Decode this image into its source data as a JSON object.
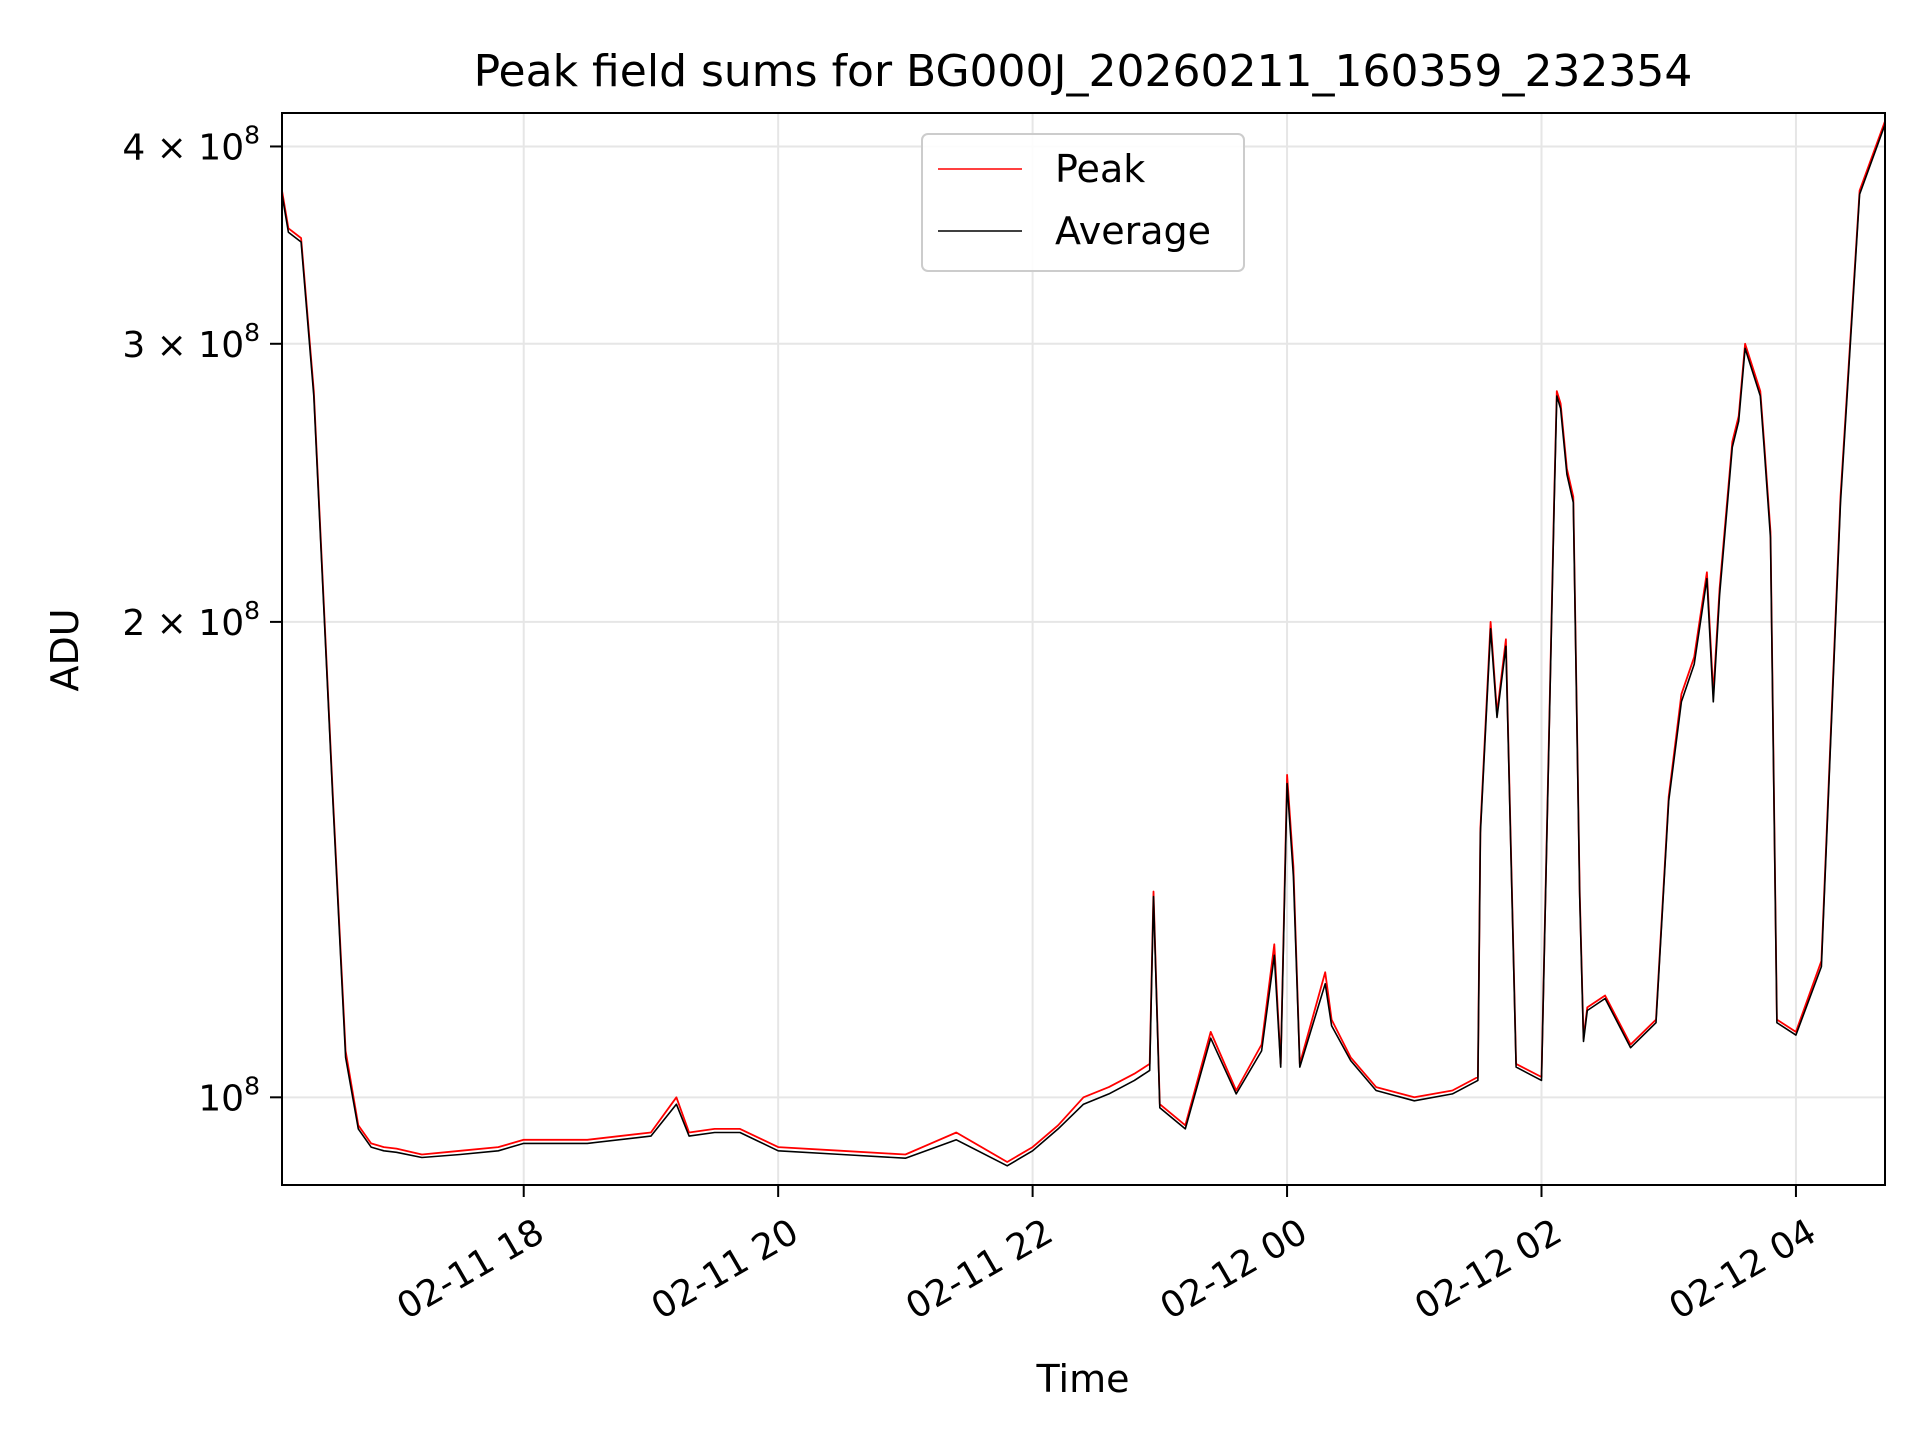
{
  "chart_data": {
    "type": "line",
    "title": "Peak field sums for BG000J_20260211_160359_232354",
    "xlabel": "Time",
    "ylabel": "ADU",
    "yscale": "log",
    "ylim": [
      88000000,
      420000000
    ],
    "xlim_hours": [
      16.1,
      28.7
    ],
    "grid": true,
    "legend_position": "upper-center",
    "x_ticks": [
      {
        "hour": 18,
        "label": "02-11 18"
      },
      {
        "hour": 20,
        "label": "02-11 20"
      },
      {
        "hour": 22,
        "label": "02-11 22"
      },
      {
        "hour": 24,
        "label": "02-12 00"
      },
      {
        "hour": 26,
        "label": "02-12 02"
      },
      {
        "hour": 28,
        "label": "02-12 04"
      }
    ],
    "y_ticks": [
      {
        "value": 100000000,
        "mant": "",
        "exp": "8",
        "label": "10^8"
      },
      {
        "value": 200000000,
        "mant": "2 × ",
        "exp": "8",
        "label": "2 × 10^8"
      },
      {
        "value": 300000000,
        "mant": "3 × ",
        "exp": "8",
        "label": "3 × 10^8"
      },
      {
        "value": 400000000,
        "mant": "4 × ",
        "exp": "8",
        "label": "4 × 10^8"
      }
    ],
    "x_hours": [
      16.1,
      16.15,
      16.25,
      16.35,
      16.5,
      16.6,
      16.7,
      16.8,
      16.9,
      17.0,
      17.2,
      17.5,
      17.8,
      18.0,
      18.5,
      19.0,
      19.2,
      19.3,
      19.5,
      19.7,
      20.0,
      20.5,
      21.0,
      21.4,
      21.8,
      22.0,
      22.2,
      22.4,
      22.6,
      22.8,
      22.92,
      22.95,
      23.0,
      23.2,
      23.4,
      23.6,
      23.8,
      23.9,
      23.95,
      24.0,
      24.05,
      24.1,
      24.3,
      24.35,
      24.5,
      24.7,
      25.0,
      25.3,
      25.5,
      25.52,
      25.6,
      25.65,
      25.72,
      25.8,
      26.0,
      26.1,
      26.12,
      26.15,
      26.2,
      26.25,
      26.3,
      26.33,
      26.36,
      26.5,
      26.7,
      26.9,
      27.0,
      27.1,
      27.2,
      27.3,
      27.35,
      27.4,
      27.5,
      27.55,
      27.6,
      27.72,
      27.75,
      27.8,
      27.85,
      28.0,
      28.2,
      28.35,
      28.5,
      28.7
    ],
    "series": [
      {
        "name": "Peak",
        "color": "#ff0000",
        "values": [
          375000000,
          355000000,
          350000000,
          280000000,
          155000000,
          107000000,
          96000000,
          93500000,
          93000000,
          92800000,
          92000000,
          92500000,
          93000000,
          94000000,
          94000000,
          95000000,
          100000000,
          95000000,
          95500000,
          95500000,
          93000000,
          92500000,
          92000000,
          95000000,
          91000000,
          93000000,
          96000000,
          100000000,
          101500000,
          103500000,
          105000000,
          135000000,
          99000000,
          96000000,
          110000000,
          101000000,
          108000000,
          125000000,
          105000000,
          160000000,
          140000000,
          105000000,
          120000000,
          112000000,
          106000000,
          101500000,
          100000000,
          101000000,
          103000000,
          148000000,
          200000000,
          175000000,
          195000000,
          105000000,
          103000000,
          240000000,
          280000000,
          275000000,
          250000000,
          240000000,
          135000000,
          109000000,
          114000000,
          116000000,
          108000000,
          112000000,
          155000000,
          180000000,
          190000000,
          215000000,
          180000000,
          210000000,
          260000000,
          270000000,
          300000000,
          280000000,
          260000000,
          228000000,
          112000000,
          110000000,
          122000000,
          240000000,
          375000000,
          415000000
        ]
      },
      {
        "name": "Average",
        "color": "#000000",
        "values": [
          373000000,
          353000000,
          348000000,
          278000000,
          154000000,
          106000000,
          95500000,
          93000000,
          92500000,
          92300000,
          91600000,
          92000000,
          92500000,
          93500000,
          93500000,
          94500000,
          99000000,
          94500000,
          95000000,
          95000000,
          92500000,
          92000000,
          91500000,
          94000000,
          90500000,
          92500000,
          95500000,
          99000000,
          100500000,
          102500000,
          104000000,
          134000000,
          98500000,
          95500000,
          109000000,
          100500000,
          107000000,
          123000000,
          104500000,
          158000000,
          138000000,
          104500000,
          118000000,
          111000000,
          105500000,
          101000000,
          99500000,
          100500000,
          102500000,
          147000000,
          198000000,
          174000000,
          193000000,
          104500000,
          102500000,
          238000000,
          278000000,
          273000000,
          248000000,
          238000000,
          134000000,
          108500000,
          113500000,
          115500000,
          107500000,
          111500000,
          154000000,
          178000000,
          188000000,
          213000000,
          178000000,
          208000000,
          258000000,
          268000000,
          298000000,
          278000000,
          258000000,
          226000000,
          111500000,
          109500000,
          121000000,
          238000000,
          373000000,
          413000000
        ]
      }
    ]
  }
}
